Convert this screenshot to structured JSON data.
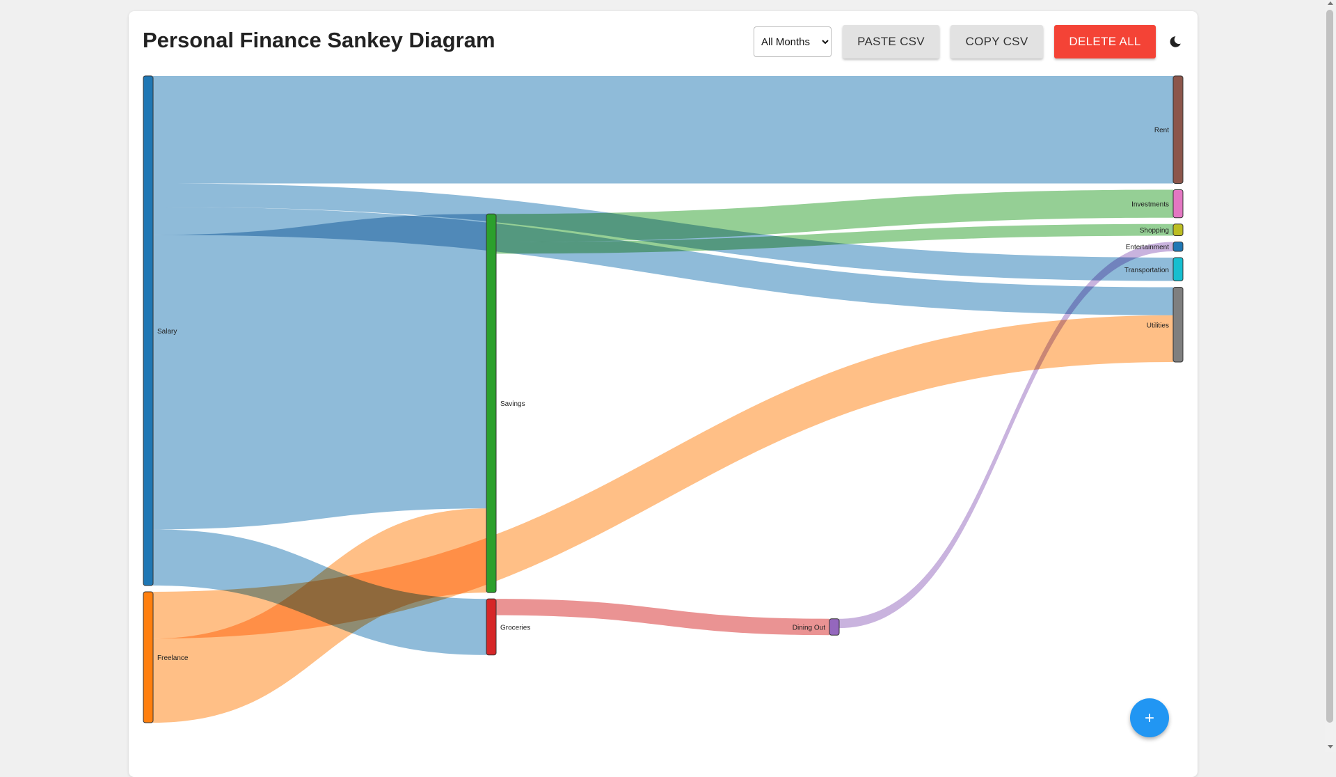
{
  "header": {
    "title": "Personal Finance Sankey Diagram",
    "month_select": {
      "selected": "All Months",
      "options": [
        "All Months"
      ]
    },
    "paste_csv_label": "PASTE CSV",
    "copy_csv_label": "COPY CSV",
    "delete_all_label": "DELETE ALL",
    "theme_icon": "moon-icon"
  },
  "fab": {
    "label": "+",
    "icon": "add-icon"
  },
  "colors": {
    "button_grey": "#e2e2e2",
    "button_danger": "#f44336",
    "fab": "#2196f3"
  },
  "chart_data": {
    "type": "sankey",
    "nodes": [
      {
        "id": "salary",
        "label": "Salary",
        "column": 0,
        "color": "#1f77b4"
      },
      {
        "id": "freelance",
        "label": "Freelance",
        "column": 0,
        "color": "#ff7f0e"
      },
      {
        "id": "savings",
        "label": "Savings",
        "column": 1,
        "color": "#2ca02c"
      },
      {
        "id": "groceries",
        "label": "Groceries",
        "column": 1,
        "color": "#d62728"
      },
      {
        "id": "dining_out",
        "label": "Dining Out",
        "column": 2,
        "color": "#9467bd"
      },
      {
        "id": "rent",
        "label": "Rent",
        "column": 3,
        "color": "#8c564b"
      },
      {
        "id": "investments",
        "label": "Investments",
        "column": 3,
        "color": "#e377c2"
      },
      {
        "id": "shopping",
        "label": "Shopping",
        "column": 3,
        "color": "#bcbd22"
      },
      {
        "id": "entertainment",
        "label": "Entertainment",
        "column": 3,
        "color": "#1f77b4"
      },
      {
        "id": "transportation",
        "label": "Transportation",
        "column": 3,
        "color": "#17becf"
      },
      {
        "id": "utilities",
        "label": "Utilities",
        "column": 3,
        "color": "#7f7f7f"
      }
    ],
    "links": [
      {
        "source": "salary",
        "target": "rent",
        "value": 23
      },
      {
        "source": "salary",
        "target": "savings",
        "value": 63
      },
      {
        "source": "salary",
        "target": "groceries",
        "value": 12
      },
      {
        "source": "salary",
        "target": "transportation",
        "value": 5
      },
      {
        "source": "salary",
        "target": "utilities",
        "value": 6
      },
      {
        "source": "freelance",
        "target": "savings",
        "value": 18
      },
      {
        "source": "freelance",
        "target": "utilities",
        "value": 10
      },
      {
        "source": "savings",
        "target": "investments",
        "value": 6
      },
      {
        "source": "savings",
        "target": "shopping",
        "value": 2.5
      },
      {
        "source": "groceries",
        "target": "dining_out",
        "value": 3.5
      },
      {
        "source": "dining_out",
        "target": "entertainment",
        "value": 2
      }
    ]
  }
}
